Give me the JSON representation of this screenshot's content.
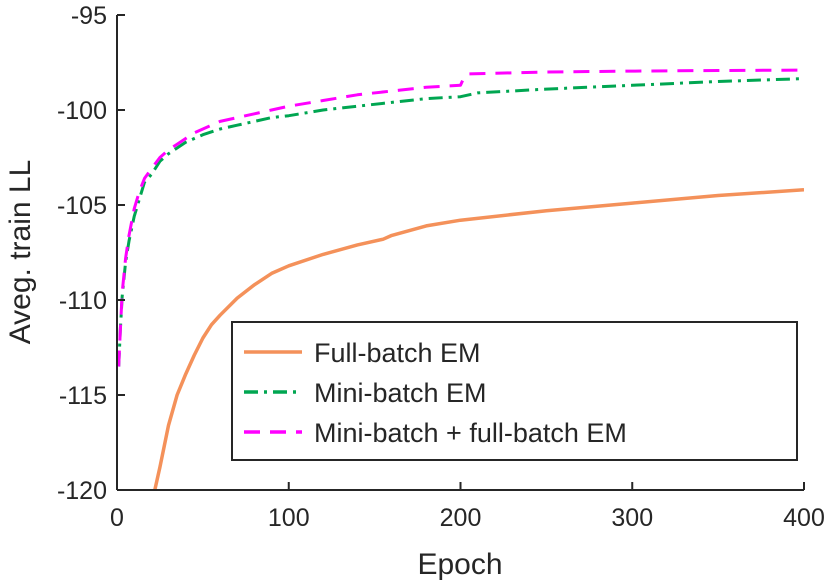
{
  "chart_data": {
    "type": "line",
    "xlabel": "Epoch",
    "ylabel": "Aveg. train LL",
    "xlim": [
      0,
      400
    ],
    "ylim": [
      -120,
      -95
    ],
    "xticks": [
      0,
      100,
      200,
      300,
      400
    ],
    "yticks": [
      -95,
      -100,
      -105,
      -110,
      -115,
      -120
    ],
    "xtick_labels": [
      "0",
      "100",
      "200",
      "300",
      "400"
    ],
    "ytick_labels": [
      "-95",
      "-100",
      "-105",
      "-110",
      "-115",
      "-120"
    ],
    "grid": false,
    "legend_position": "bottom-right",
    "series": [
      {
        "name": "Full-batch EM",
        "color": "#f4915a",
        "style": "solid",
        "x": [
          22,
          25,
          30,
          35,
          40,
          45,
          50,
          55,
          60,
          70,
          80,
          90,
          100,
          120,
          140,
          155,
          160,
          180,
          200,
          250,
          300,
          350,
          400
        ],
        "y": [
          -120,
          -118.8,
          -116.6,
          -115.0,
          -113.9,
          -112.9,
          -112.0,
          -111.3,
          -110.8,
          -109.9,
          -109.2,
          -108.6,
          -108.2,
          -107.6,
          -107.1,
          -106.8,
          -106.6,
          -106.1,
          -105.8,
          -105.3,
          -104.9,
          -104.5,
          -104.2
        ]
      },
      {
        "name": "Mini-batch EM",
        "color": "#00a651",
        "style": "dashdot",
        "x": [
          1,
          2,
          3,
          5,
          7,
          10,
          13,
          16,
          20,
          25,
          30,
          35,
          40,
          45,
          50,
          60,
          70,
          80,
          90,
          100,
          120,
          140,
          160,
          180,
          200,
          210,
          250,
          300,
          350,
          400
        ],
        "y": [
          -113.5,
          -111.5,
          -109.8,
          -108.0,
          -106.9,
          -105.6,
          -104.7,
          -103.8,
          -103.4,
          -102.7,
          -102.3,
          -102.0,
          -101.7,
          -101.5,
          -101.3,
          -101.0,
          -100.8,
          -100.6,
          -100.4,
          -100.3,
          -100.0,
          -99.8,
          -99.6,
          -99.4,
          -99.3,
          -99.1,
          -98.9,
          -98.7,
          -98.5,
          -98.35
        ]
      },
      {
        "name": "Mini-batch + full-batch EM",
        "color": "#ff00ff",
        "style": "dashed",
        "x": [
          1,
          2,
          3,
          5,
          7,
          10,
          13,
          16,
          20,
          25,
          30,
          35,
          40,
          45,
          50,
          55,
          60,
          70,
          80,
          90,
          100,
          120,
          140,
          160,
          180,
          200,
          202,
          205,
          250,
          300,
          350,
          400
        ],
        "y": [
          -113.5,
          -111.5,
          -109.6,
          -107.8,
          -106.6,
          -105.2,
          -104.3,
          -103.6,
          -103.1,
          -102.5,
          -102.1,
          -101.8,
          -101.5,
          -101.2,
          -101.0,
          -100.8,
          -100.6,
          -100.4,
          -100.2,
          -100.0,
          -99.8,
          -99.5,
          -99.2,
          -99.0,
          -98.8,
          -98.7,
          -98.3,
          -98.1,
          -98.0,
          -97.95,
          -97.92,
          -97.9
        ]
      }
    ]
  }
}
